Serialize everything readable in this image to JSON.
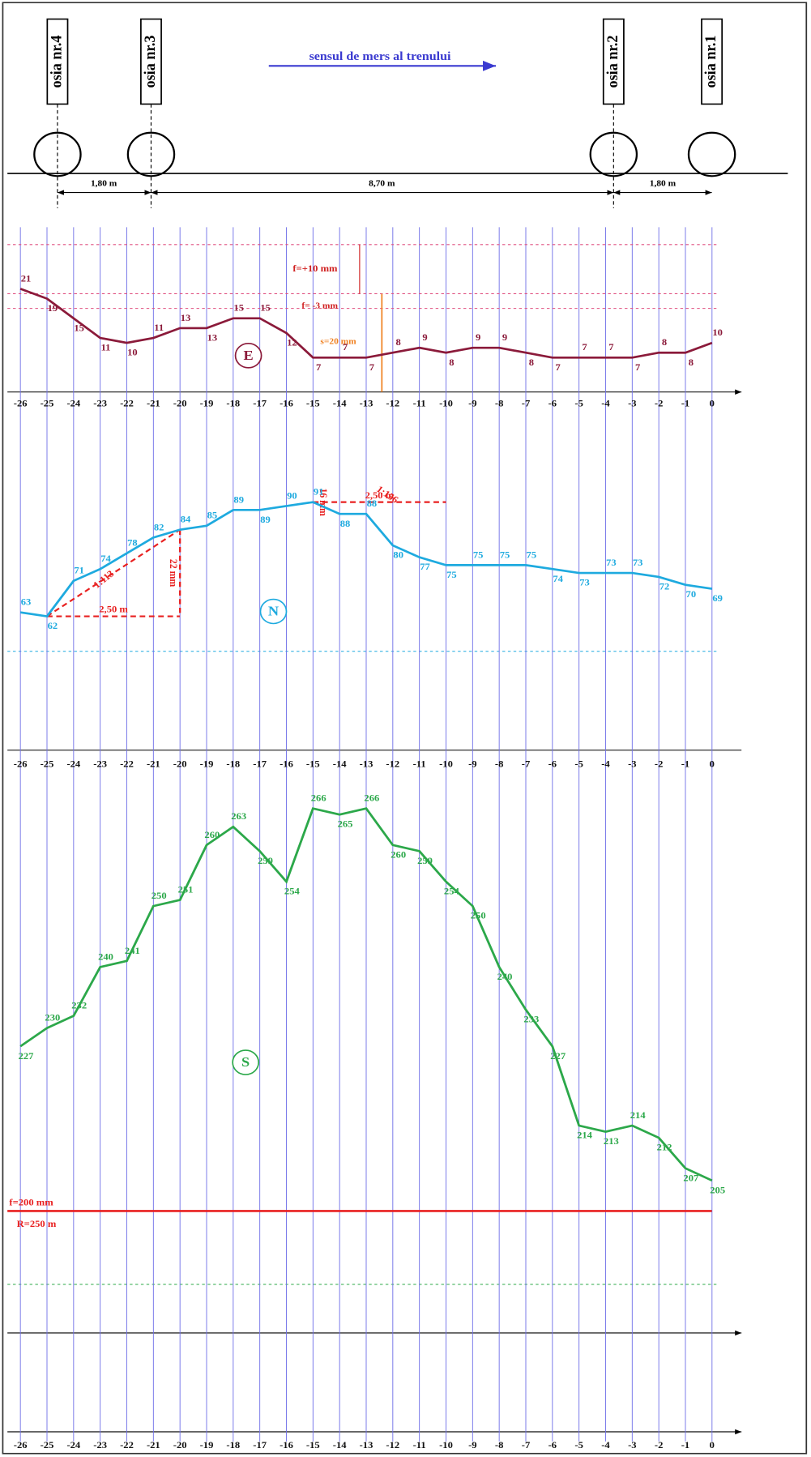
{
  "header": {
    "direction": "sensul de mers al trenului",
    "axles": [
      "osia nr.4",
      "osia nr.3",
      "osia nr.2",
      "osia nr.1"
    ],
    "spacings": [
      "1,80 m",
      "8,70 m",
      "1,80 m"
    ]
  },
  "chart_data": [
    {
      "type": "line",
      "symbol": "E",
      "color": "#8b1a3a",
      "x": [
        -26,
        -25,
        -24,
        -23,
        -22,
        -21,
        -20,
        -19,
        -18,
        -17,
        -16,
        -15,
        -14,
        -13,
        -12,
        -11,
        -10,
        -9,
        -8,
        -7,
        -6,
        -5,
        -4,
        -3,
        -2,
        -1,
        0
      ],
      "values": [
        21,
        19,
        15,
        11,
        10,
        11,
        13,
        13,
        15,
        15,
        12,
        7,
        7,
        7,
        8,
        9,
        8,
        9,
        9,
        8,
        7,
        7,
        7,
        7,
        8,
        8,
        10
      ],
      "ylim": [
        0,
        33
      ],
      "ref_lines": [
        30,
        20,
        17
      ],
      "annotations": [
        "f=+10 mm",
        "f= -3 mm",
        "s=20 mm"
      ]
    },
    {
      "type": "line",
      "symbol": "N",
      "color": "#1eaadf",
      "x": [
        -26,
        -25,
        -24,
        -23,
        -22,
        -21,
        -20,
        -19,
        -18,
        -17,
        -16,
        -15,
        -14,
        -13,
        -12,
        -11,
        -10,
        -9,
        -8,
        -7,
        -6,
        -5,
        -4,
        -3,
        -2,
        -1,
        0
      ],
      "values": [
        63,
        62,
        71,
        74,
        78,
        82,
        84,
        85,
        89,
        89,
        90,
        91,
        88,
        88,
        80,
        77,
        75,
        75,
        75,
        75,
        74,
        73,
        73,
        73,
        72,
        70,
        69
      ],
      "ylim": [
        28,
        115
      ],
      "annotations": [
        "2,50 m",
        "22 mm",
        "1:113",
        "2,50 m",
        "16 mm",
        "1:156"
      ]
    },
    {
      "type": "line",
      "symbol": "S",
      "color": "#2ca84a",
      "x": [
        -26,
        -25,
        -24,
        -23,
        -22,
        -21,
        -20,
        -19,
        -18,
        -17,
        -16,
        -15,
        -14,
        -13,
        -12,
        -11,
        -10,
        -9,
        -8,
        -7,
        -6,
        -5,
        -4,
        -3,
        -2,
        -1,
        0
      ],
      "values": [
        227,
        230,
        232,
        240,
        241,
        250,
        251,
        260,
        263,
        259,
        254,
        266,
        265,
        266,
        260,
        259,
        254,
        250,
        240,
        233,
        227,
        214,
        213,
        214,
        212,
        207,
        205
      ],
      "ylim": [
        180,
        272
      ],
      "limit": {
        "value": 200,
        "label": "f=200 mm"
      },
      "annotations": [
        "R=250 m"
      ]
    }
  ]
}
